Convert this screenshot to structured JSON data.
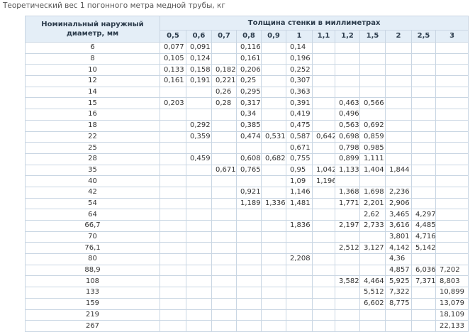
{
  "title": "Теоретический вес 1 погонного метра медной трубы, кг",
  "table": {
    "header": {
      "diameter": "Номинальный наружный диаметр, мм",
      "thickness": "Толщина стенки в миллиметрах",
      "columns": [
        "0,5",
        "0,6",
        "0,7",
        "0,8",
        "0,9",
        "1",
        "1,1",
        "1,2",
        "1,5",
        "2",
        "2,5",
        "3"
      ]
    },
    "rows": [
      [
        "6",
        "0,077",
        "0,091",
        null,
        "0,116",
        null,
        "0,14",
        null,
        null,
        null,
        null,
        null,
        null
      ],
      [
        "8",
        "0,105",
        "0,124",
        null,
        "0,161",
        null,
        "0,196",
        null,
        null,
        null,
        null,
        null,
        null
      ],
      [
        "10",
        "0,133",
        "0,158",
        "0,182",
        "0,206",
        null,
        "0,252",
        null,
        null,
        null,
        null,
        null,
        null
      ],
      [
        "12",
        "0,161",
        "0,191",
        "0,221",
        "0,25",
        null,
        "0,307",
        null,
        null,
        null,
        null,
        null,
        null
      ],
      [
        "14",
        null,
        null,
        "0,26",
        "0,295",
        null,
        "0,363",
        null,
        null,
        null,
        null,
        null,
        null
      ],
      [
        "15",
        "0,203",
        null,
        "0,28",
        "0,317",
        null,
        "0,391",
        null,
        "0,463",
        "0,566",
        null,
        null,
        null
      ],
      [
        "16",
        null,
        null,
        null,
        "0,34",
        null,
        "0,419",
        null,
        "0,496",
        null,
        null,
        null,
        null
      ],
      [
        "18",
        null,
        "0,292",
        null,
        "0,385",
        null,
        "0,475",
        null,
        "0,563",
        "0,692",
        null,
        null,
        null
      ],
      [
        "22",
        null,
        "0,359",
        null,
        "0,474",
        "0,531",
        "0,587",
        "0,642",
        "0,698",
        "0,859",
        null,
        null,
        null
      ],
      [
        "25",
        null,
        null,
        null,
        null,
        null,
        "0,671",
        null,
        "0,798",
        "0,985",
        null,
        null,
        null
      ],
      [
        "28",
        null,
        "0,459",
        null,
        "0,608",
        "0,682",
        "0,755",
        null,
        "0,899",
        "1,111",
        null,
        null,
        null
      ],
      [
        "35",
        null,
        null,
        "0,671",
        "0,765",
        null,
        "0,95",
        "1,042",
        "1,133",
        "1,404",
        "1,844",
        null,
        null
      ],
      [
        "40",
        null,
        null,
        null,
        null,
        null,
        "1,09",
        "1,196",
        null,
        null,
        null,
        null,
        null
      ],
      [
        "42",
        null,
        null,
        null,
        "0,921",
        null,
        "1,146",
        null,
        "1,368",
        "1,698",
        "2,236",
        null,
        null
      ],
      [
        "54",
        null,
        null,
        null,
        "1,189",
        "1,336",
        "1,481",
        null,
        "1,771",
        "2,201",
        "2,906",
        null,
        null
      ],
      [
        "64",
        null,
        null,
        null,
        null,
        null,
        null,
        null,
        null,
        "2,62",
        "3,465",
        "4,297",
        null
      ],
      [
        "66,7",
        null,
        null,
        null,
        null,
        null,
        "1,836",
        null,
        "2,197",
        "2,733",
        "3,616",
        "4,485",
        null
      ],
      [
        "70",
        null,
        null,
        null,
        null,
        null,
        null,
        null,
        null,
        null,
        "3,801",
        "4,716",
        null
      ],
      [
        "76,1",
        null,
        null,
        null,
        null,
        null,
        null,
        null,
        "2,512",
        "3,127",
        "4,142",
        "5,142",
        null
      ],
      [
        "80",
        null,
        null,
        null,
        null,
        null,
        "2,208",
        null,
        null,
        null,
        "4,36",
        null,
        null
      ],
      [
        "88,9",
        null,
        null,
        null,
        null,
        null,
        null,
        null,
        null,
        null,
        "4,857",
        "6,036",
        "7,202"
      ],
      [
        "108",
        null,
        null,
        null,
        null,
        null,
        null,
        null,
        "3,582",
        "4,464",
        "5,925",
        "7,371",
        "8,803"
      ],
      [
        "133",
        null,
        null,
        null,
        null,
        null,
        null,
        null,
        null,
        "5,512",
        "7,322",
        null,
        "10,899"
      ],
      [
        "159",
        null,
        null,
        null,
        null,
        null,
        null,
        null,
        null,
        "6,602",
        "8,775",
        null,
        "13,079"
      ],
      [
        "219",
        null,
        null,
        null,
        null,
        null,
        null,
        null,
        null,
        null,
        null,
        null,
        "18,109"
      ],
      [
        "267",
        null,
        null,
        null,
        null,
        null,
        null,
        null,
        null,
        null,
        null,
        null,
        "22,133"
      ]
    ]
  }
}
